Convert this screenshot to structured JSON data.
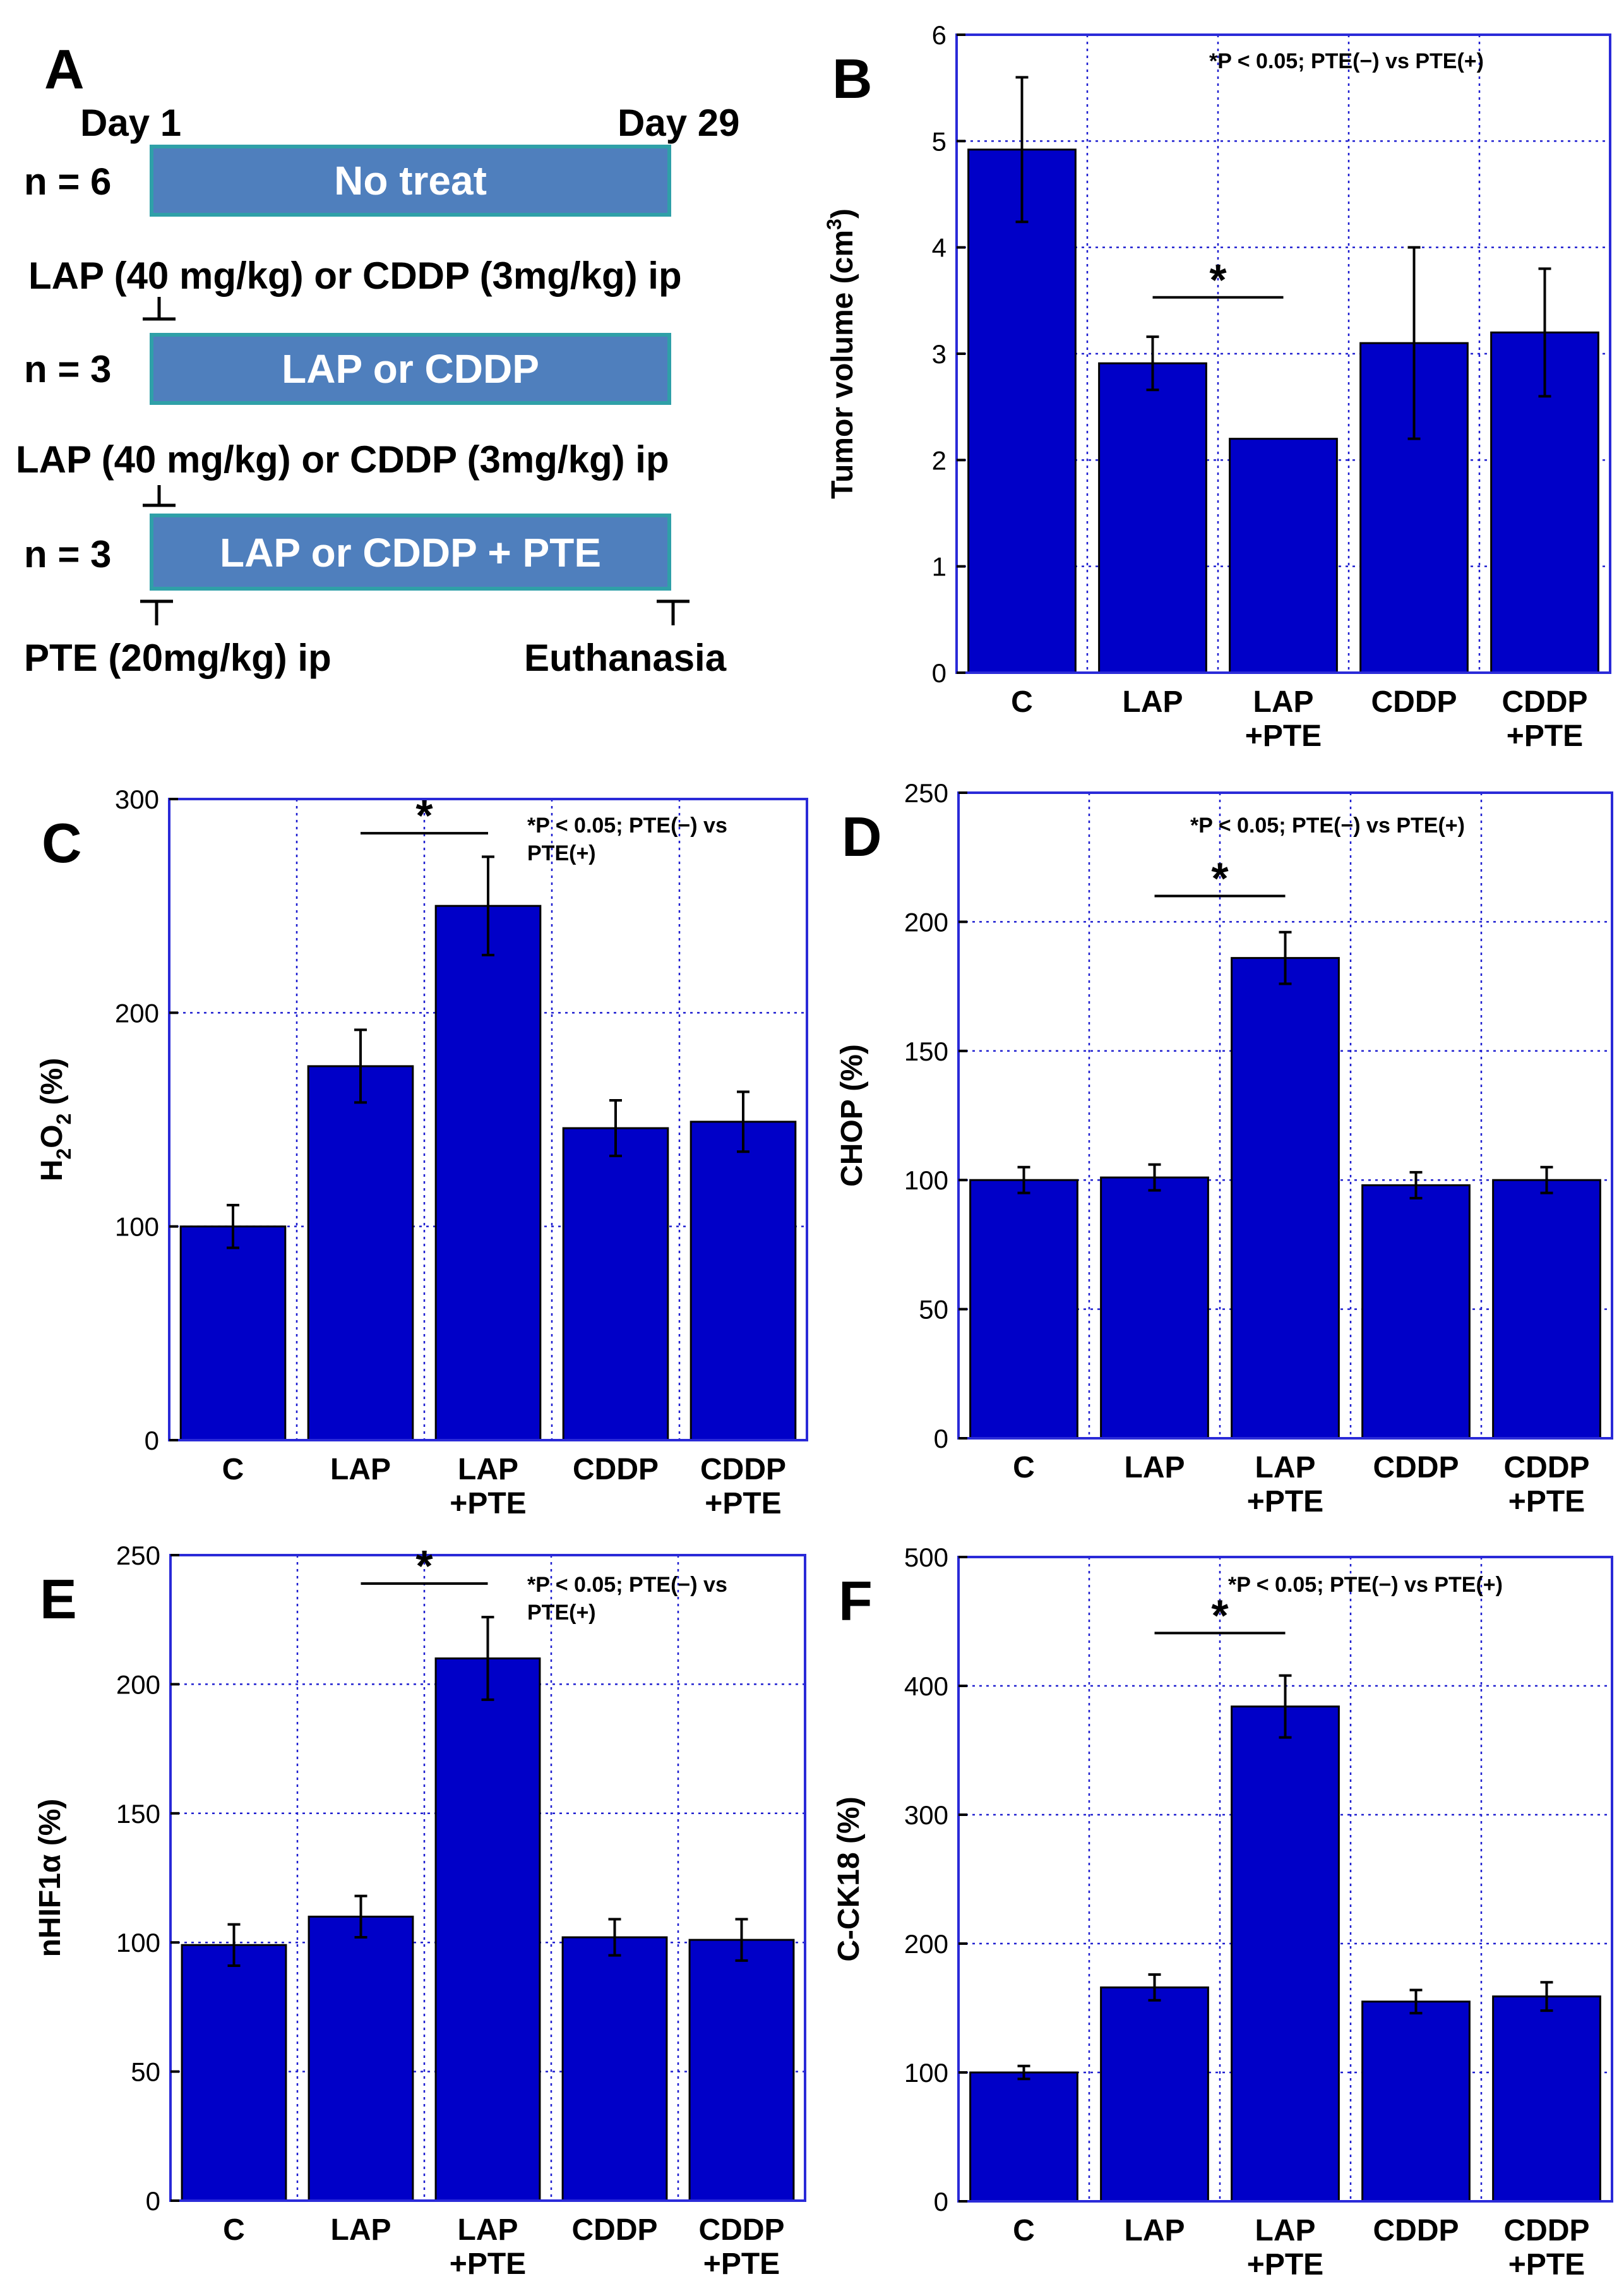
{
  "panel_a": {
    "label": "A",
    "day_start": "Day 1",
    "day_end": "Day 29",
    "rows": [
      {
        "n": "n = 6",
        "box": "No treat"
      },
      {
        "n": "n = 3",
        "box": "LAP or CDDP"
      },
      {
        "n": "n = 3",
        "box": "LAP or CDDP + PTE"
      }
    ],
    "dose_line_1": "LAP (40 mg/kg) or CDDP (3mg/kg) ip",
    "dose_line_2": "LAP (40 mg/kg) or CDDP (3mg/kg) ip",
    "pte_dose": "PTE (20mg/kg) ip",
    "euthanasia": "Euthanasia"
  },
  "colors": {
    "bar": "#0000c8",
    "box": "#4f7fbd",
    "box_border": "#2fa0a8",
    "grid": "#1f1fd0"
  },
  "chart_data": [
    {
      "panel": "B",
      "type": "bar",
      "categories": [
        "C",
        "LAP",
        "LAP\n+PTE",
        "CDDP",
        "CDDP\n+PTE"
      ],
      "values": [
        4.92,
        2.91,
        2.2,
        3.1,
        3.2
      ],
      "errors": [
        0.68,
        0.25,
        0.0,
        0.9,
        0.6
      ],
      "ylabel": "Tumor volume (cm3)",
      "ylim": [
        0,
        6
      ],
      "yticks": [
        0,
        1,
        2,
        3,
        4,
        5,
        6
      ],
      "note": "*P < 0.05; PTE(−) vs PTE(+)",
      "significance": {
        "between": [
          1,
          2
        ],
        "at": 3.53,
        "mark": "*"
      }
    },
    {
      "panel": "C",
      "type": "bar",
      "categories": [
        "C",
        "LAP",
        "LAP\n+PTE",
        "CDDP",
        "CDDP\n+PTE"
      ],
      "values": [
        100,
        175,
        250,
        146,
        149
      ],
      "errors": [
        10,
        17,
        23,
        13,
        14
      ],
      "ylabel": "H2O2 (%)",
      "ylim": [
        0,
        300
      ],
      "yticks": [
        0,
        100,
        200,
        300
      ],
      "note": "*P < 0.05; PTE(−) vs\nPTE(+)",
      "significance": {
        "between": [
          1,
          2
        ],
        "at": 284,
        "mark": "*"
      }
    },
    {
      "panel": "D",
      "type": "bar",
      "categories": [
        "C",
        "LAP",
        "LAP\n+PTE",
        "CDDP",
        "CDDP\n+PTE"
      ],
      "values": [
        100,
        101,
        186,
        98,
        100
      ],
      "errors": [
        5,
        5,
        10,
        5,
        5
      ],
      "ylabel": "CHOP (%)",
      "ylim": [
        0,
        250
      ],
      "yticks": [
        0,
        50,
        100,
        150,
        200,
        250
      ],
      "note": "*P < 0.05; PTE(−) vs PTE(+)",
      "significance": {
        "between": [
          1,
          2
        ],
        "at": 210,
        "mark": "*"
      }
    },
    {
      "panel": "E",
      "type": "bar",
      "categories": [
        "C",
        "LAP",
        "LAP\n+PTE",
        "CDDP",
        "CDDP\n+PTE"
      ],
      "values": [
        99,
        110,
        210,
        102,
        101
      ],
      "errors": [
        8,
        8,
        16,
        7,
        8
      ],
      "ylabel": "nHIF1α (%)",
      "ylim": [
        0,
        250
      ],
      "yticks": [
        0,
        50,
        100,
        150,
        200,
        250
      ],
      "note": "*P < 0.05; PTE(−) vs\nPTE(+)",
      "significance": {
        "between": [
          1,
          2
        ],
        "at": 239,
        "mark": "*"
      }
    },
    {
      "panel": "F",
      "type": "bar",
      "categories": [
        "C",
        "LAP",
        "LAP\n+PTE",
        "CDDP",
        "CDDP\n+PTE"
      ],
      "values": [
        100,
        166,
        384,
        155,
        159
      ],
      "errors": [
        5,
        10,
        24,
        9,
        11
      ],
      "ylabel": "C-CK18 (%)",
      "ylim": [
        0,
        500
      ],
      "yticks": [
        0,
        100,
        200,
        300,
        400,
        500
      ],
      "note": "*P < 0.05; PTE(−) vs PTE(+)",
      "significance": {
        "between": [
          1,
          2
        ],
        "at": 441,
        "mark": "*"
      }
    }
  ]
}
